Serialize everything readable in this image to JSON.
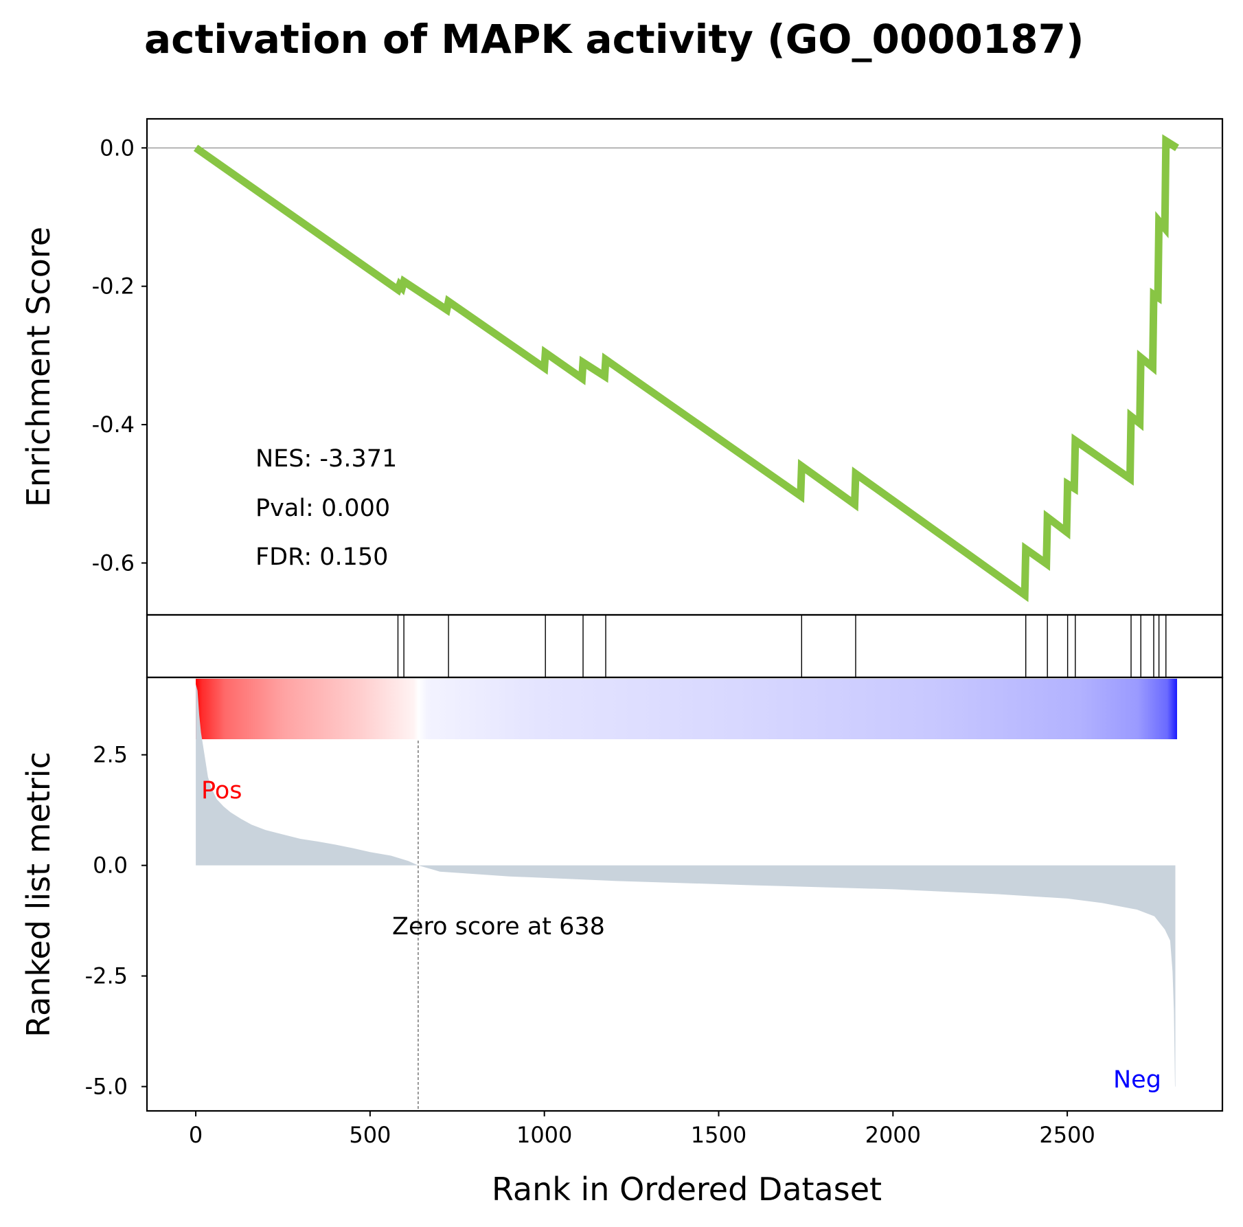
{
  "title": "activation of MAPK activity (GO_0000187)",
  "stats": {
    "nes": "NES: -3.371",
    "pval": "Pval: 0.000",
    "fdr": "FDR: 0.150"
  },
  "annotations": {
    "zero_score": "Zero score at 638",
    "pos": "Pos",
    "neg": "Neg"
  },
  "colors": {
    "es_line": "#88c544",
    "metric_fill": "#c9d3dc",
    "pos_label": "#ff0000",
    "neg_label": "#0000ff"
  },
  "chart_data": {
    "type": "line",
    "xlabel": "Rank in Ordered Dataset",
    "xlim": [
      -140,
      2945
    ],
    "xticks": [
      0,
      500,
      1000,
      1500,
      2000,
      2500
    ],
    "zero_score_rank": 638,
    "n_genes": 2815,
    "enrichment": {
      "ylabel": "Enrichment Score",
      "ylim": [
        -0.675,
        0.042
      ],
      "yticks": [
        0.0,
        -0.2,
        -0.4,
        -0.6
      ],
      "ytick_labels": [
        "0.0",
        "-0.2",
        "-0.4",
        "-0.6"
      ],
      "points": [
        [
          0,
          0.0
        ],
        [
          580,
          -0.205
        ],
        [
          585,
          -0.198
        ],
        [
          592,
          -0.202
        ],
        [
          597,
          -0.193
        ],
        [
          720,
          -0.234
        ],
        [
          725,
          -0.222
        ],
        [
          1000,
          -0.318
        ],
        [
          1003,
          -0.296
        ],
        [
          1108,
          -0.333
        ],
        [
          1111,
          -0.31
        ],
        [
          1173,
          -0.33
        ],
        [
          1176,
          -0.306
        ],
        [
          1735,
          -0.503
        ],
        [
          1738,
          -0.46
        ],
        [
          1890,
          -0.515
        ],
        [
          1893,
          -0.471
        ],
        [
          2378,
          -0.646
        ],
        [
          2381,
          -0.58
        ],
        [
          2440,
          -0.601
        ],
        [
          2443,
          -0.534
        ],
        [
          2498,
          -0.555
        ],
        [
          2501,
          -0.486
        ],
        [
          2520,
          -0.492
        ],
        [
          2523,
          -0.423
        ],
        [
          2680,
          -0.478
        ],
        [
          2683,
          -0.388
        ],
        [
          2708,
          -0.398
        ],
        [
          2711,
          -0.303
        ],
        [
          2745,
          -0.317
        ],
        [
          2748,
          -0.212
        ],
        [
          2760,
          -0.216
        ],
        [
          2763,
          -0.106
        ],
        [
          2780,
          -0.116
        ],
        [
          2783,
          0.01
        ],
        [
          2815,
          0.0
        ]
      ],
      "reference_line": 0.0
    },
    "hits": [
      580,
      597,
      725,
      1003,
      1111,
      1176,
      1738,
      1893,
      2381,
      2443,
      2501,
      2523,
      2683,
      2711,
      2748,
      2763,
      2783
    ],
    "metric": {
      "ylabel": "Ranked list metric",
      "ylim": [
        -5.55,
        4.25
      ],
      "yticks": [
        2.5,
        0.0,
        -2.5,
        -5.0
      ],
      "ytick_labels": [
        "2.5",
        "0.0",
        "-2.5",
        "-5.0"
      ],
      "curve": [
        [
          0,
          4.1
        ],
        [
          5,
          3.95
        ],
        [
          10,
          3.4
        ],
        [
          15,
          3.0
        ],
        [
          25,
          2.5
        ],
        [
          35,
          2.0
        ],
        [
          45,
          1.75
        ],
        [
          60,
          1.5
        ],
        [
          80,
          1.33
        ],
        [
          100,
          1.2
        ],
        [
          130,
          1.05
        ],
        [
          160,
          0.92
        ],
        [
          200,
          0.8
        ],
        [
          250,
          0.7
        ],
        [
          300,
          0.6
        ],
        [
          350,
          0.54
        ],
        [
          400,
          0.47
        ],
        [
          450,
          0.39
        ],
        [
          500,
          0.3
        ],
        [
          560,
          0.22
        ],
        [
          610,
          0.1
        ],
        [
          638,
          0.0
        ],
        [
          700,
          -0.14
        ],
        [
          900,
          -0.25
        ],
        [
          1200,
          -0.35
        ],
        [
          1600,
          -0.45
        ],
        [
          2000,
          -0.54
        ],
        [
          2300,
          -0.65
        ],
        [
          2500,
          -0.75
        ],
        [
          2600,
          -0.85
        ],
        [
          2700,
          -1.0
        ],
        [
          2750,
          -1.15
        ],
        [
          2780,
          -1.45
        ],
        [
          2795,
          -1.7
        ],
        [
          2802,
          -2.4
        ],
        [
          2806,
          -3.3
        ],
        [
          2809,
          -5.0
        ],
        [
          2810,
          -5.0
        ]
      ]
    }
  }
}
